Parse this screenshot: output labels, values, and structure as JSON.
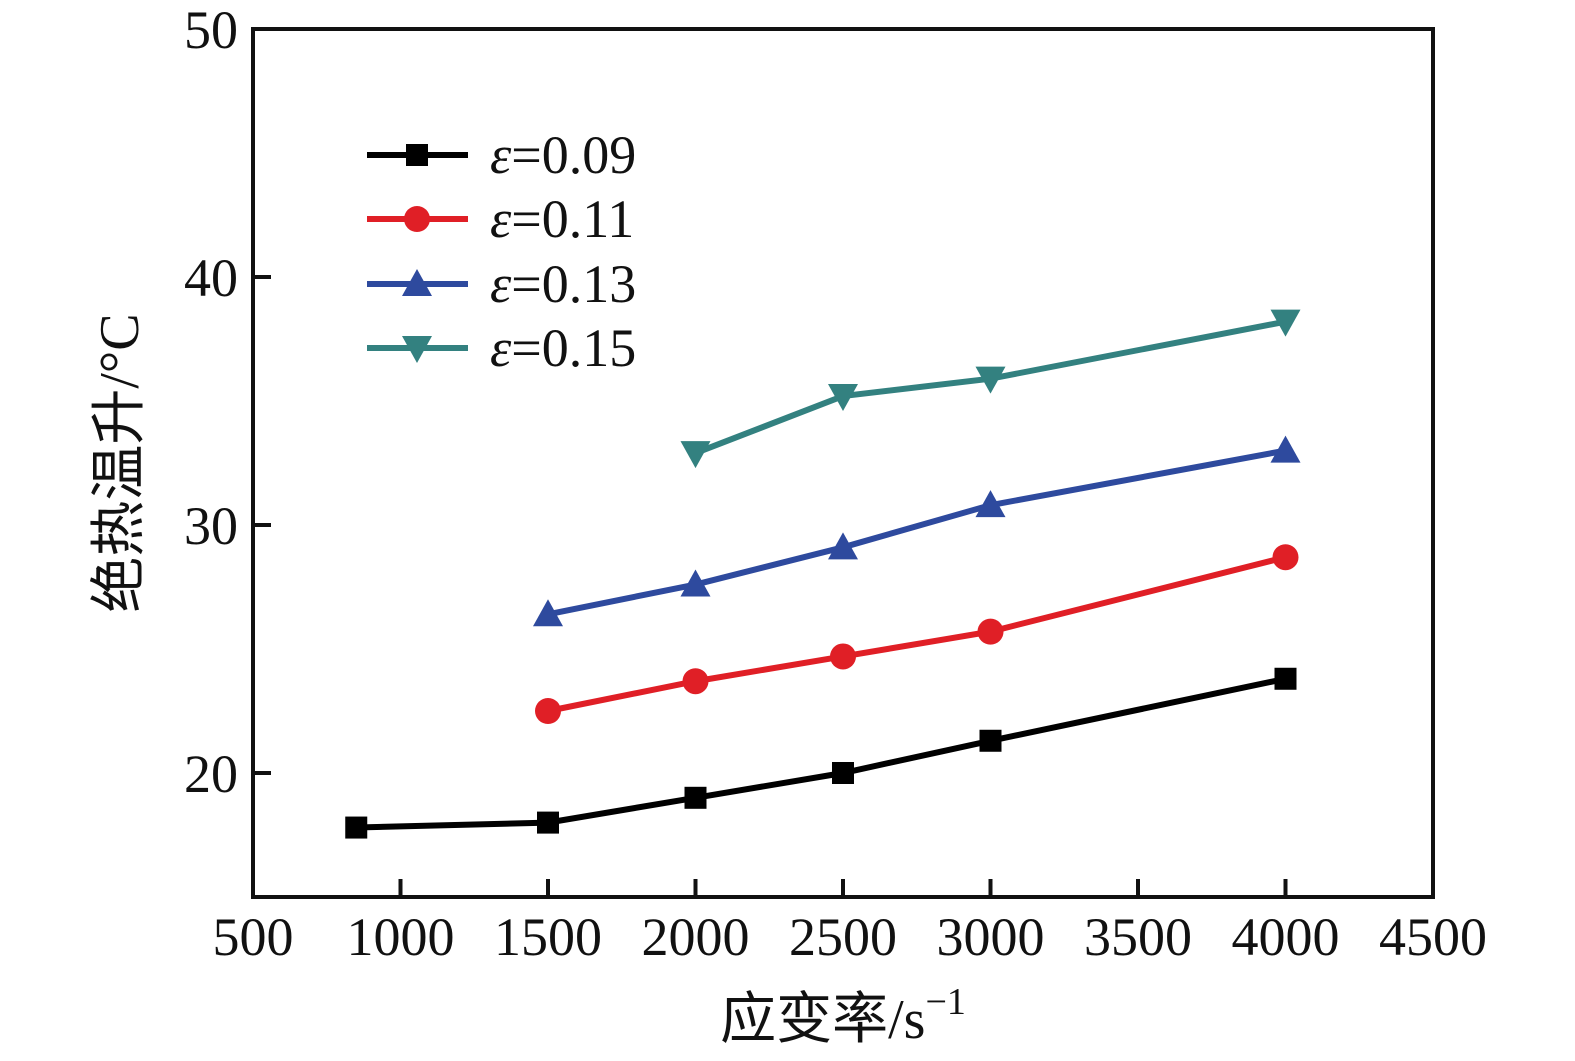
{
  "chart_data": {
    "type": "line",
    "title": "",
    "xlabel": "应变率/s⁻¹",
    "xlabel_base": "应变率/s",
    "xlabel_superscript": "−1",
    "ylabel": "绝热温升/°C",
    "xlim": [
      500,
      4500
    ],
    "ylim": [
      15,
      50
    ],
    "x_ticks": [
      500,
      1000,
      1500,
      2000,
      2500,
      3000,
      3500,
      4000,
      4500
    ],
    "y_ticks": [
      20,
      30,
      40,
      50
    ],
    "grid": false,
    "legend_position": "upper-left-inside",
    "series": [
      {
        "name": "ε=0.09",
        "color": "#000000",
        "marker": "square",
        "x": [
          850,
          1500,
          2000,
          2500,
          3000,
          4000
        ],
        "y": [
          17.8,
          18.0,
          19.0,
          20.0,
          21.3,
          23.8
        ]
      },
      {
        "name": "ε=0.11",
        "color": "#e01f26",
        "marker": "circle",
        "x": [
          1500,
          2000,
          2500,
          3000,
          4000
        ],
        "y": [
          22.5,
          23.7,
          24.7,
          25.7,
          28.7
        ]
      },
      {
        "name": "ε=0.13",
        "color": "#2e4a9e",
        "marker": "triangle-up",
        "x": [
          1500,
          2000,
          2500,
          3000,
          4000
        ],
        "y": [
          26.4,
          27.6,
          29.1,
          30.8,
          33.0
        ]
      },
      {
        "name": "ε=0.15",
        "color": "#338180",
        "marker": "triangle-down",
        "x": [
          2000,
          2500,
          3000,
          4000
        ],
        "y": [
          32.9,
          35.2,
          35.9,
          38.2
        ]
      }
    ]
  }
}
